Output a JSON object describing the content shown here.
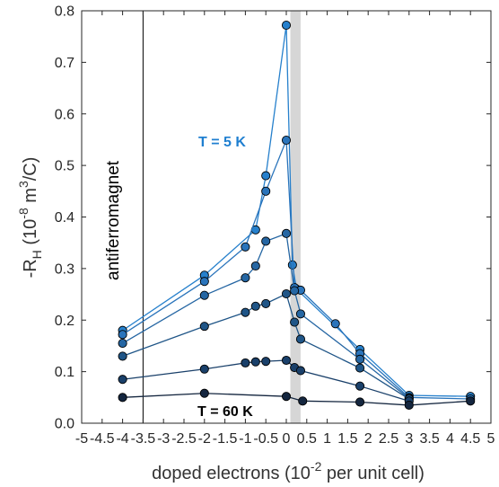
{
  "chart_data": {
    "type": "line",
    "title": "",
    "xlabel_main": "doped electrons (10",
    "xlabel_exp": "-2",
    "xlabel_tail": " per unit cell)",
    "ylabel_main": "-R",
    "ylabel_sub": "H",
    "ylabel_mid": " (10",
    "ylabel_exp1": "-8",
    "ylabel_mid2": " m",
    "ylabel_exp2": "3",
    "ylabel_tail": "/C)",
    "xlim": [
      -5,
      5
    ],
    "ylim": [
      0,
      0.8
    ],
    "xticks": [
      -5,
      -4.5,
      -4,
      -3.5,
      -3,
      -2.5,
      -2,
      -1.5,
      -1,
      -0.5,
      0,
      0.5,
      1,
      1.5,
      2,
      2.5,
      3,
      3.5,
      4,
      4.5,
      5
    ],
    "xtick_labels": [
      "-5",
      "-4.5",
      "-4",
      "-3.5",
      "-3",
      "-2.5",
      "-2",
      "-1.5",
      "-1",
      "-0.5",
      "0",
      "0.5",
      "1",
      "1.5",
      "2",
      "2.5",
      "3",
      "3.5",
      "4",
      "4.5",
      "5"
    ],
    "yticks": [
      0,
      0.1,
      0.2,
      0.3,
      0.4,
      0.5,
      0.6,
      0.7,
      0.8
    ],
    "ytick_labels": [
      "0.0",
      "0.1",
      "0.2",
      "0.3",
      "0.4",
      "0.5",
      "0.6",
      "0.7",
      "0.8"
    ],
    "grid": false,
    "vertical_line_x": -3.5,
    "vertical_line_label": "antiferromagnet",
    "shaded_band_x": [
      0.1,
      0.35
    ],
    "annotations": [
      {
        "text": "T = 5 K",
        "color": "#1f7fd0"
      },
      {
        "text": "T = 60 K",
        "color": "#000000"
      }
    ],
    "series": [
      {
        "color": "#2680cc",
        "points": [
          [
            -4,
            0.18
          ],
          [
            -2,
            0.287
          ],
          [
            -0.75,
            0.375
          ],
          [
            -0.5,
            0.48
          ],
          [
            0,
            0.772
          ],
          [
            0.15,
            0.307
          ],
          [
            0.25,
            0.26
          ],
          [
            1.8,
            0.143
          ],
          [
            3,
            0.054
          ],
          [
            4.5,
            0.052
          ]
        ]
      },
      {
        "color": "#2a74bb",
        "points": [
          [
            -4,
            0.172
          ],
          [
            -2,
            0.275
          ],
          [
            -1,
            0.342
          ],
          [
            -0.5,
            0.45
          ],
          [
            0,
            0.549
          ],
          [
            0.2,
            0.263
          ],
          [
            0.35,
            0.258
          ],
          [
            1.2,
            0.193
          ],
          [
            1.8,
            0.135
          ],
          [
            3,
            0.05
          ],
          [
            4.5,
            0.047
          ]
        ]
      },
      {
        "color": "#2566a3",
        "points": [
          [
            -4,
            0.155
          ],
          [
            -2,
            0.248
          ],
          [
            -1,
            0.282
          ],
          [
            -0.75,
            0.305
          ],
          [
            -0.5,
            0.353
          ],
          [
            0,
            0.368
          ],
          [
            0.2,
            0.257
          ],
          [
            0.35,
            0.212
          ],
          [
            1.8,
            0.124
          ],
          [
            3,
            0.048
          ]
        ]
      },
      {
        "color": "#1f5587",
        "points": [
          [
            -4,
            0.13
          ],
          [
            -2,
            0.188
          ],
          [
            -1,
            0.215
          ],
          [
            -0.75,
            0.227
          ],
          [
            -0.5,
            0.232
          ],
          [
            0,
            0.251
          ],
          [
            0.2,
            0.196
          ],
          [
            0.35,
            0.163
          ],
          [
            1.8,
            0.107
          ],
          [
            3,
            0.047
          ]
        ]
      },
      {
        "color": "#1a406a",
        "points": [
          [
            -4,
            0.085
          ],
          [
            -2,
            0.105
          ],
          [
            -1,
            0.117
          ],
          [
            -0.75,
            0.119
          ],
          [
            -0.5,
            0.12
          ],
          [
            0,
            0.122
          ],
          [
            0.2,
            0.108
          ],
          [
            0.35,
            0.102
          ],
          [
            1.8,
            0.072
          ],
          [
            3,
            0.043
          ]
        ]
      },
      {
        "color": "#14263f",
        "points": [
          [
            -4,
            0.05
          ],
          [
            -2,
            0.058
          ],
          [
            0,
            0.052
          ],
          [
            0.4,
            0.043
          ],
          [
            1.8,
            0.041
          ],
          [
            3,
            0.035
          ],
          [
            4.5,
            0.043
          ]
        ]
      }
    ]
  }
}
